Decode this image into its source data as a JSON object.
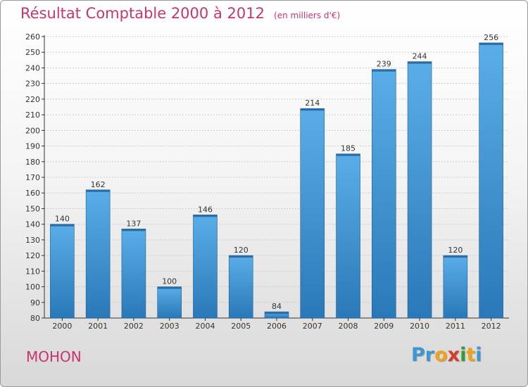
{
  "title": "Résultat Comptable 2000 à 2012",
  "subtitle": "(en milliers d'€)",
  "commune": "MOHON",
  "logo": {
    "letters": [
      "P",
      "r",
      "o",
      "x",
      "i",
      "t",
      "i"
    ],
    "colors": [
      "#3e97d1",
      "#3e97d1",
      "#f0a21b",
      "#d63a2a",
      "#3a9a3a",
      "#f0a21b",
      "#3e97d1"
    ]
  },
  "colors": {
    "title": "#c8356e",
    "bar_top": "#5aaee8",
    "bar_bottom": "#2a78b8",
    "axis": "#333333",
    "grid": "#cccccc"
  },
  "chart_data": {
    "type": "bar",
    "categories": [
      "2000",
      "2001",
      "2002",
      "2003",
      "2004",
      "2005",
      "2006",
      "2007",
      "2008",
      "2009",
      "2010",
      "2011",
      "2012"
    ],
    "values": [
      140,
      162,
      137,
      100,
      146,
      120,
      84,
      214,
      185,
      239,
      244,
      120,
      256
    ],
    "data_labels": [
      "140",
      "162",
      "137",
      "100",
      "146",
      "120",
      "84",
      "214",
      "185",
      "239",
      "244",
      "120",
      "256"
    ],
    "yticks": [
      80,
      90,
      100,
      110,
      120,
      130,
      140,
      150,
      160,
      170,
      180,
      190,
      200,
      210,
      220,
      230,
      240,
      250,
      260
    ],
    "ylim": [
      80,
      260
    ],
    "grid": true,
    "xlabel": "",
    "ylabel": ""
  }
}
